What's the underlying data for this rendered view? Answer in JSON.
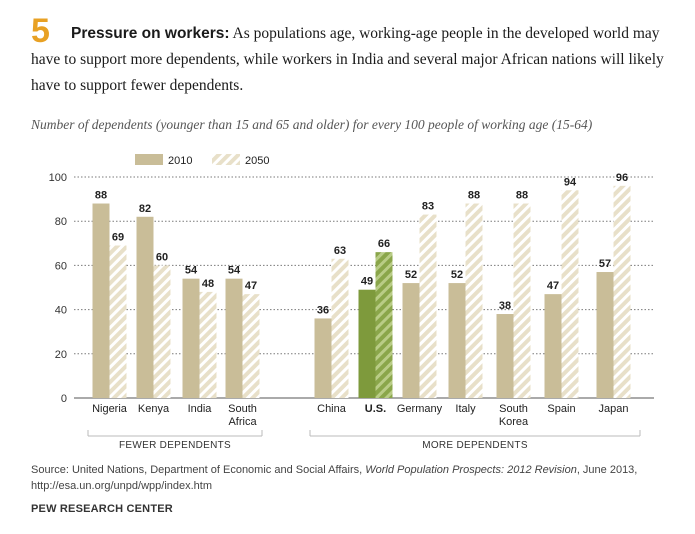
{
  "header": {
    "number": "5",
    "lead": "Pressure on workers:",
    "text": "As populations age, working-age people in the developed world may have to support more dependents, while workers in India and several major African nations will likely have to support fewer dependents."
  },
  "subtitle": "Number of dependents (younger than 15 and 65 and older) for every 100 people of working age (15-64)",
  "source": {
    "prefix": "Source: United Nations, Department of Economic and Social Affairs,",
    "title": "World Population Prospects: 2012 Revision",
    "suffix": ", June 2013, http://esa.un.org/unpd/wpp/index.htm"
  },
  "brand": "PEW RESEARCH CENTER",
  "colors": {
    "bar2010": "#c9bd98",
    "bar2050_bg": "#e8e0c9",
    "bar2050_stripe": "#ffffff",
    "us2010": "#7e9a3c",
    "us2050_bg": "#8aa64a",
    "us2050_stripe": "#b9cc86",
    "number": "#e8a124",
    "grid": "#7a7a7a"
  },
  "chart_data": {
    "type": "bar",
    "title": "Number of dependents (younger than 15 and 65 and older) for every 100 people of working age (15-64)",
    "xlabel": "",
    "ylabel": "",
    "ylim": [
      0,
      100
    ],
    "yticks": [
      0,
      20,
      40,
      60,
      80,
      100
    ],
    "grid": true,
    "legend": [
      "2010",
      "2050"
    ],
    "categories": [
      "Nigeria",
      "Kenya",
      "India",
      "South Africa",
      "China",
      "U.S.",
      "Germany",
      "Italy",
      "South Korea",
      "Spain",
      "Japan"
    ],
    "category_lines": [
      [
        "Nigeria"
      ],
      [
        "Kenya"
      ],
      [
        "India"
      ],
      [
        "South",
        "Africa"
      ],
      [
        "China"
      ],
      [
        "U.S."
      ],
      [
        "Germany"
      ],
      [
        "Italy"
      ],
      [
        "South",
        "Korea"
      ],
      [
        "Spain"
      ],
      [
        "Japan"
      ]
    ],
    "highlight": "U.S.",
    "series": [
      {
        "name": "2010",
        "values": [
          88,
          82,
          54,
          54,
          36,
          49,
          52,
          52,
          38,
          47,
          57
        ]
      },
      {
        "name": "2050",
        "values": [
          69,
          60,
          48,
          47,
          63,
          66,
          83,
          88,
          88,
          94,
          96
        ]
      }
    ],
    "groups": [
      {
        "label": "FEWER DEPENDENTS",
        "categories": [
          "Nigeria",
          "Kenya",
          "India",
          "South Africa"
        ]
      },
      {
        "label": "MORE DEPENDENTS",
        "categories": [
          "China",
          "U.S.",
          "Germany",
          "Italy",
          "South Korea",
          "Spain",
          "Japan"
        ]
      }
    ]
  }
}
